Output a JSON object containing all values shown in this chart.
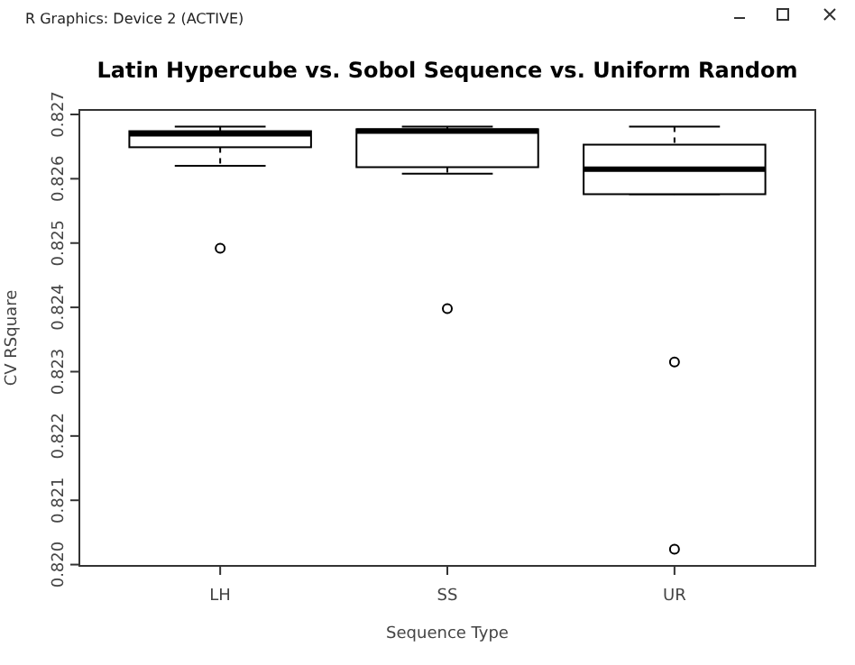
{
  "chart_data": {
    "type": "box",
    "title": "Latin Hypercube vs. Sobol Sequence vs. Uniform Random",
    "xlabel": "Sequence Type",
    "ylabel": "CV RSquare",
    "annotations": [
      "R Graphics: Device 2 (ACTIVE)"
    ],
    "categories": [
      "LH",
      "SS",
      "UR"
    ],
    "boxes": [
      {
        "low": 0.8262,
        "q1": 0.82649,
        "median": 0.8267,
        "q3": 0.82674,
        "high": 0.82681,
        "outliers": [
          0.82492
        ]
      },
      {
        "low": 0.82608,
        "q1": 0.82618,
        "median": 0.82674,
        "q3": 0.82677,
        "high": 0.82681,
        "outliers": [
          0.82398
        ]
      },
      {
        "low": 0.82576,
        "q1": 0.82576,
        "median": 0.82615,
        "q3": 0.82653,
        "high": 0.82681,
        "outliers": [
          0.82315,
          0.82024
        ]
      }
    ],
    "ylim": [
      0.81998,
      0.82707
    ],
    "yticks": [
      {
        "value": 0.82,
        "label": "0.820"
      },
      0.821,
      0.822,
      0.823,
      0.824,
      0.825,
      0.826,
      0.827
    ],
    "grid": false
  }
}
